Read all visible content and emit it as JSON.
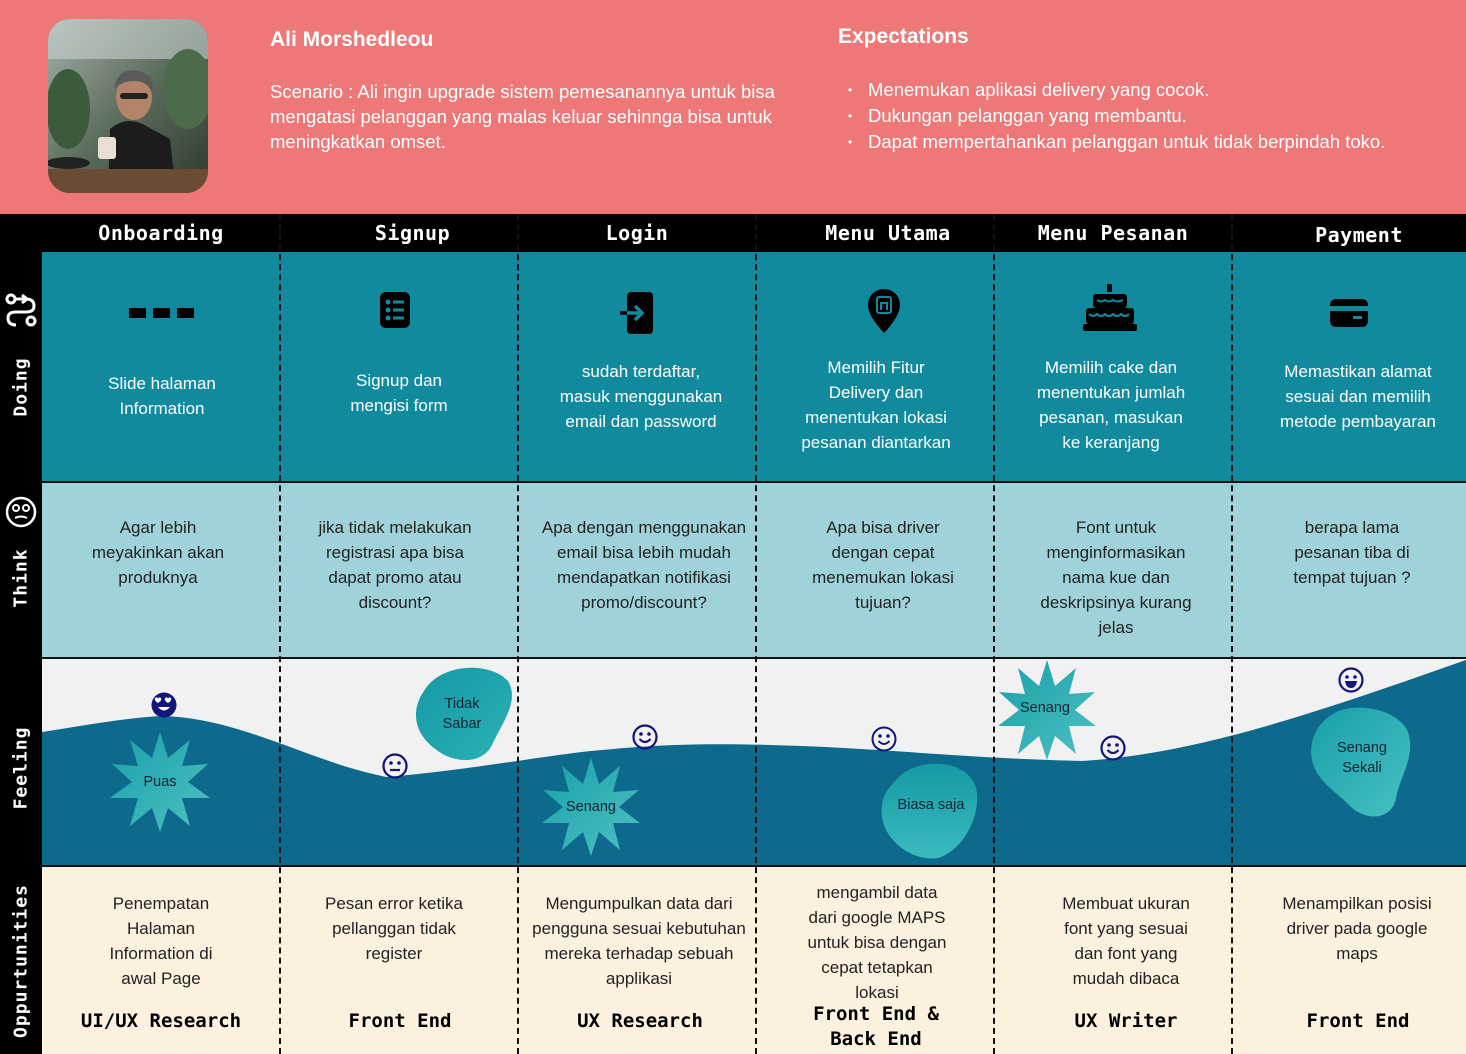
{
  "persona": {
    "name": "Ali Morshedleou",
    "scenario": "Scenario : Ali ingin upgrade sistem pemesanannya untuk bisa mengatasi pelanggan yang malas keluar sehinnga bisa untuk meningkatkan omset."
  },
  "expectations": {
    "title": "Expectations",
    "items": [
      "Menemukan aplikasi delivery yang cocok.",
      "Dukungan pelanggan yang membantu.",
      "Dapat mempertahankan pelanggan untuk tidak berpindah toko."
    ]
  },
  "rows": {
    "doing": "Doing",
    "think": "Think",
    "feeling": "Feeling",
    "opportunities": "Oppurtunities"
  },
  "stages": [
    "Onboarding",
    "Signup",
    "Login",
    "Menu Utama",
    "Menu Pesanan",
    "Payment"
  ],
  "doing": [
    {
      "icon": "dots-icon",
      "text": "Slide halaman Information"
    },
    {
      "icon": "form-list-icon",
      "text": "Signup dan mengisi form"
    },
    {
      "icon": "login-icon",
      "text": "sudah terdaftar, masuk menggunakan email dan password"
    },
    {
      "icon": "location-pin-icon",
      "text": "Memilih Fitur Delivery dan menentukan lokasi pesanan diantarkan"
    },
    {
      "icon": "cake-icon",
      "text": "Memilih cake dan menentukan jumlah pesanan, masukan ke keranjang"
    },
    {
      "icon": "card-icon",
      "text": "Memastikan alamat sesuai dan memilih metode pembayaran"
    }
  ],
  "think": [
    "Agar lebih meyakinkan akan produknya",
    "jika tidak melakukan registrasi apa bisa dapat promo atau discount?",
    "Apa dengan menggunakan email bisa lebih mudah mendapatkan notifikasi promo/discount?",
    "Apa bisa driver dengan cepat menemukan lokasi tujuan?",
    "Font untuk menginformasikan nama kue dan deskripsinya kurang jelas",
    "berapa lama pesanan tiba di tempat tujuan ?"
  ],
  "feeling": [
    {
      "label": "Puas",
      "emoji": "heart-eyes-face-icon"
    },
    {
      "label": "Tidak Sabar",
      "emoji": "neutral-face-icon"
    },
    {
      "label": "Senang",
      "emoji": "smile-face-icon"
    },
    {
      "label": "Biasa saja",
      "emoji": "smile-face-icon"
    },
    {
      "label": "Senang",
      "emoji": "smile-face-icon"
    },
    {
      "label": "Senang Sekali",
      "emoji": "grin-face-icon"
    }
  ],
  "opportunities": [
    {
      "text": "Penempatan Halaman Information di awal Page",
      "team": "UI/UX Research"
    },
    {
      "text": "Pesan error ketika pellanggan tidak register",
      "team": "Front End"
    },
    {
      "text": "Mengumpulkan data dari pengguna sesuai kebutuhan mereka terhadap sebuah applikasi",
      "team": "UX Research"
    },
    {
      "text": "mengambil data dari google MAPS untuk bisa dengan cepat tetapkan lokasi",
      "team": "Front End & Back End"
    },
    {
      "text": "Membuat ukuran font yang sesuai dan font yang mudah dibaca",
      "team": "UX Writer"
    },
    {
      "text": "Menampilkan posisi driver pada google maps",
      "team": "Front End"
    }
  ],
  "colors": {
    "header": "#ee7878",
    "doing": "#128a9e",
    "think": "#a0d3d9",
    "feeling_bg": "#f1f1f1",
    "feeling_wave": "#0e6a8d",
    "opportunities": "#fcf1de",
    "emoji": "#14147a"
  }
}
